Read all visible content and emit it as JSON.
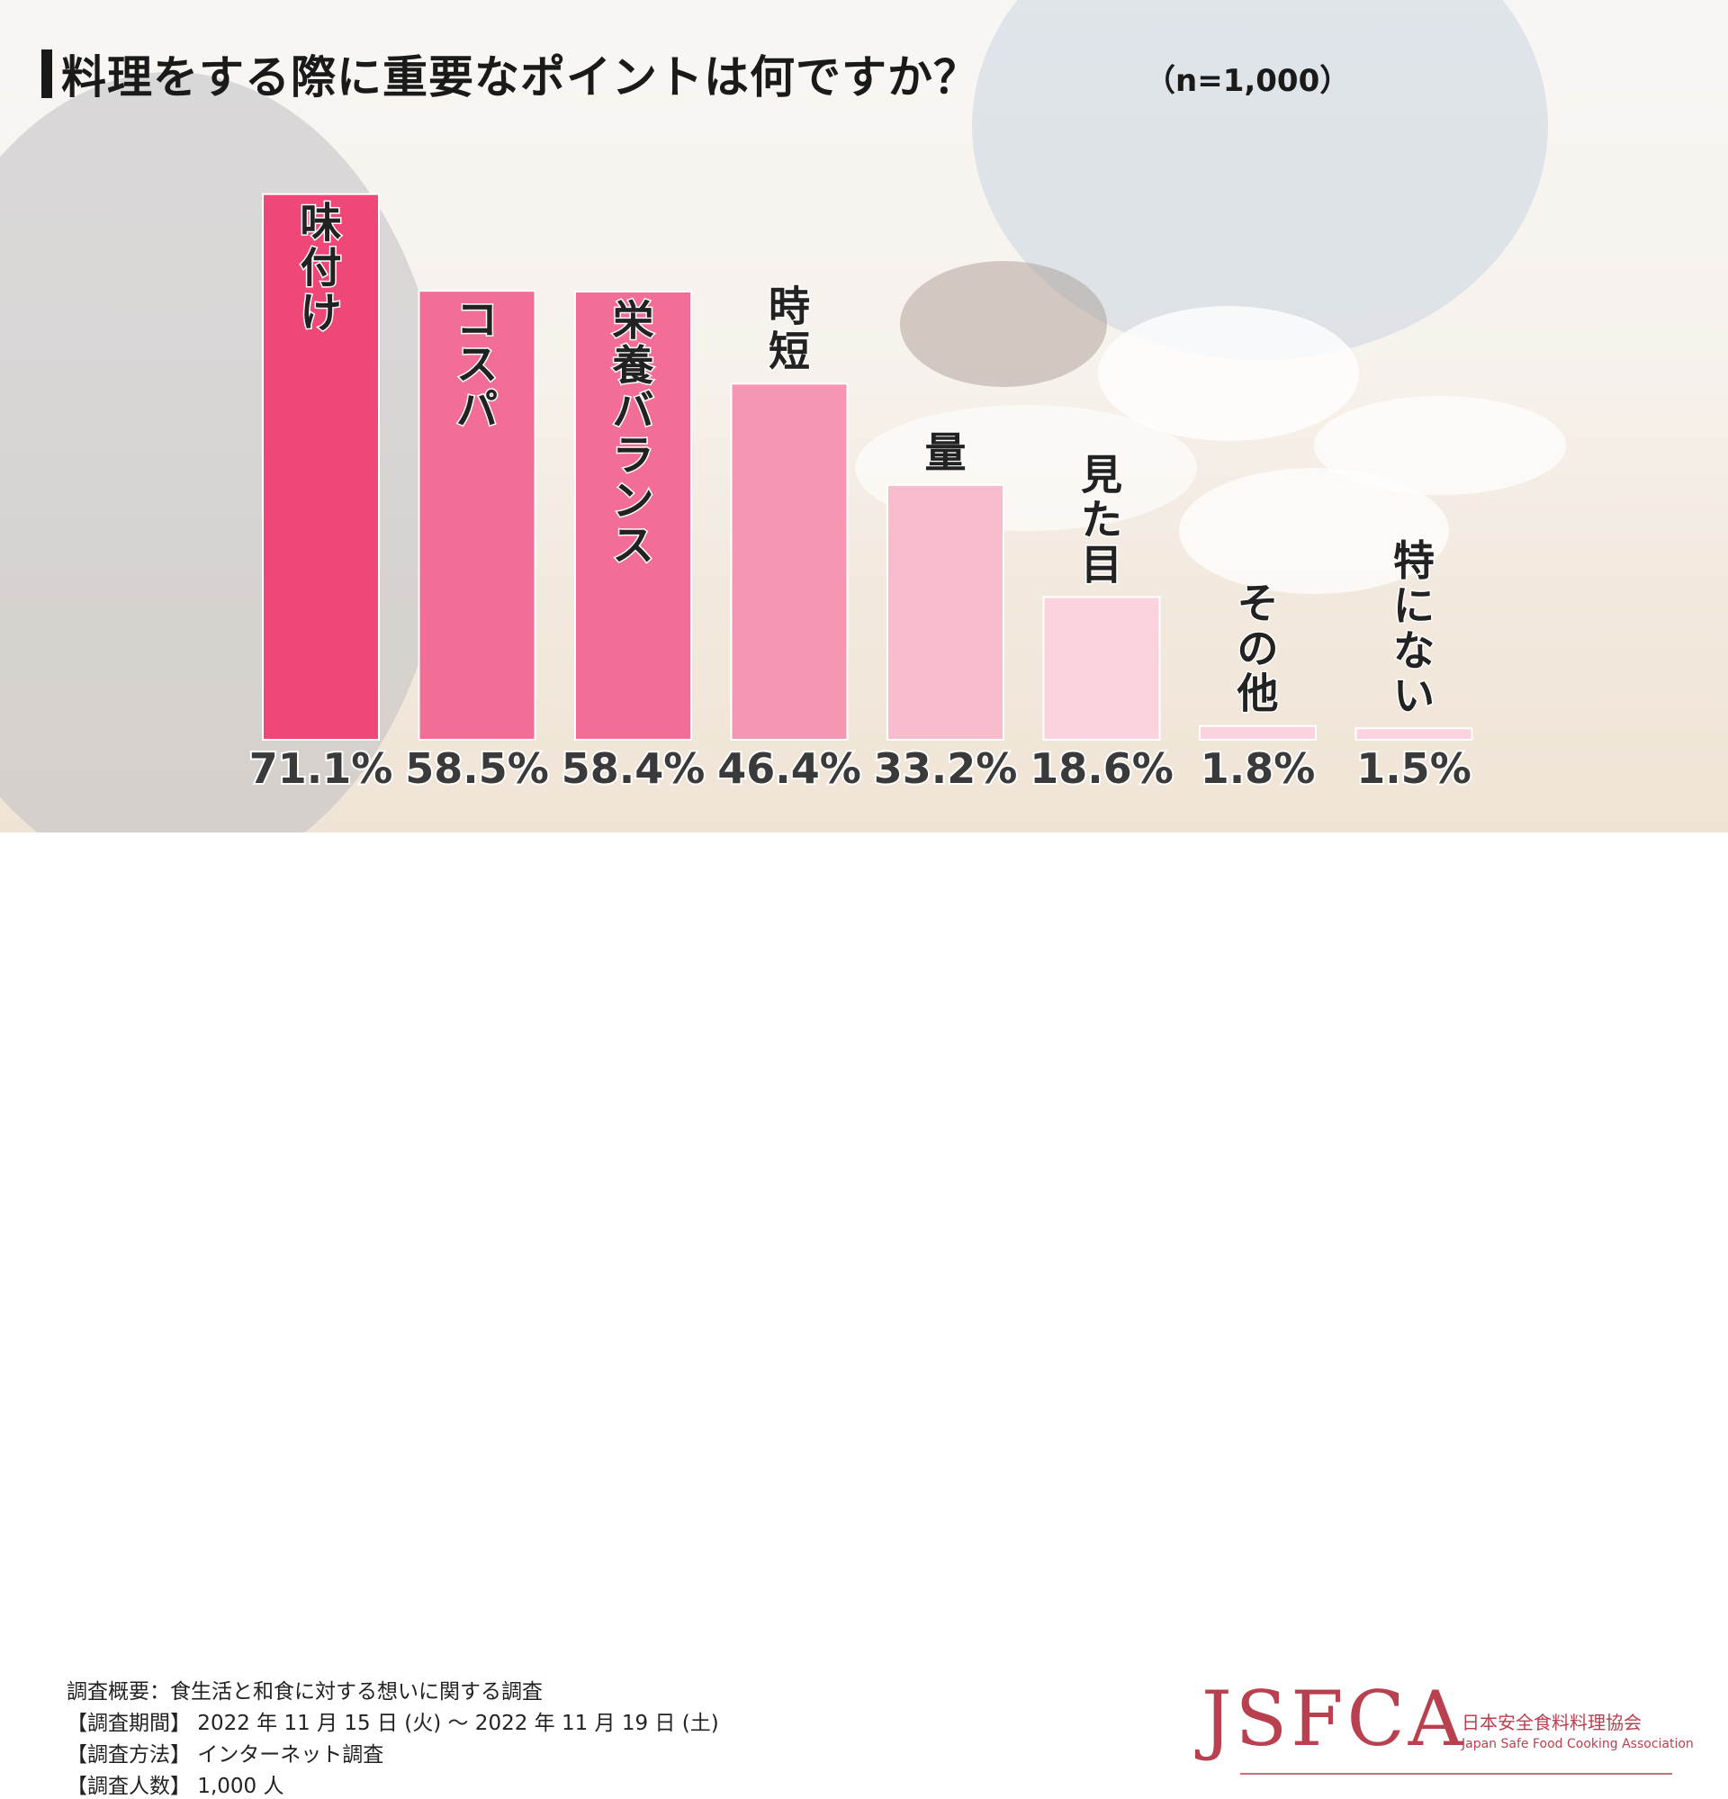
{
  "title": "料理をする際に重要なポイントは何ですか？",
  "subtitle": "（n=1,000）",
  "chart_data": {
    "type": "bar",
    "categories": [
      "味付け",
      "コスパ",
      "栄養バランス",
      "時短",
      "量",
      "見た目",
      "その他",
      "特にない"
    ],
    "values": [
      71.1,
      58.5,
      58.4,
      46.4,
      33.2,
      18.6,
      1.8,
      1.5
    ],
    "value_labels": [
      "71.1%",
      "58.5%",
      "58.4%",
      "46.4%",
      "33.2%",
      "18.6%",
      "1.8%",
      "1.5%"
    ],
    "bar_colors": [
      "#ef4777",
      "#f26e96",
      "#f26e96",
      "#f596b3",
      "#f9bccd",
      "#fbd3de",
      "#fbd3de",
      "#fbd3de"
    ],
    "label_position": [
      "inside",
      "inside",
      "inside",
      "above",
      "above",
      "above",
      "above",
      "above"
    ],
    "ylim": [
      0,
      72
    ],
    "title": "料理をする際に重要なポイントは何ですか？",
    "xlabel": "",
    "ylabel": ""
  },
  "survey": {
    "overview": "調査概要：食生活と和食に対する想いに関する調査",
    "period": "【調査期間】 2022 年 11 月 15 日 (火) ～ 2022 年 11 月 19 日 (土)",
    "method": "【調査方法】 インターネット調査",
    "respondents": "【調査人数】 1,000 人"
  },
  "logo": {
    "main": "JSFCA",
    "jp": "日本安全食料料理協会",
    "en": "Japan Safe Food Cooking Association",
    "color": "#b8404f"
  }
}
